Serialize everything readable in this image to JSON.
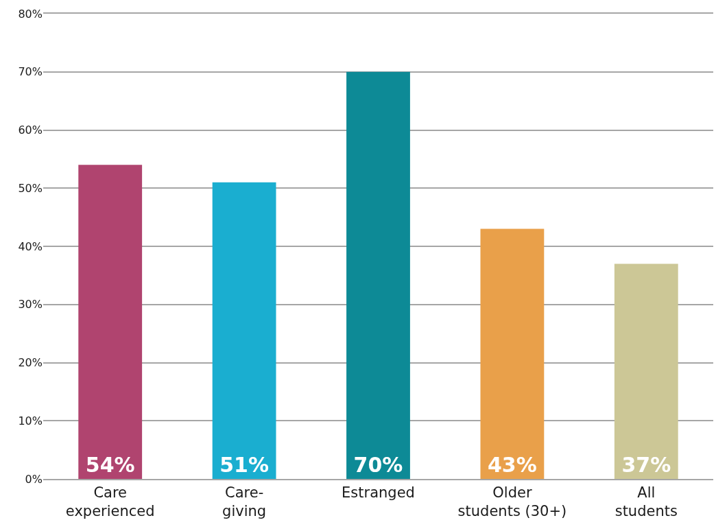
{
  "chart_data": {
    "type": "bar",
    "categories": [
      "Care\nexperienced",
      "Care-\ngiving",
      "Estranged",
      "Older\nstudents (30+)",
      "All\nstudents"
    ],
    "values": [
      54,
      51,
      70,
      43,
      37
    ],
    "colors": [
      "#b0446f",
      "#1aaed0",
      "#0d8a96",
      "#e9a04a",
      "#ccc796"
    ],
    "value_labels": [
      "54%",
      "51%",
      "70%",
      "43%",
      "37%"
    ],
    "ylim": [
      0,
      80
    ],
    "yticks": [
      {
        "value": 0,
        "label": "0%"
      },
      {
        "value": 10,
        "label": "10%"
      },
      {
        "value": 20,
        "label": "20%"
      },
      {
        "value": 30,
        "label": "30%"
      },
      {
        "value": 40,
        "label": "40%"
      },
      {
        "value": 50,
        "label": "50%"
      },
      {
        "value": 60,
        "label": "60%"
      },
      {
        "value": 70,
        "label": "70%"
      },
      {
        "value": 80,
        "label": "80%"
      }
    ],
    "grid": "y"
  }
}
